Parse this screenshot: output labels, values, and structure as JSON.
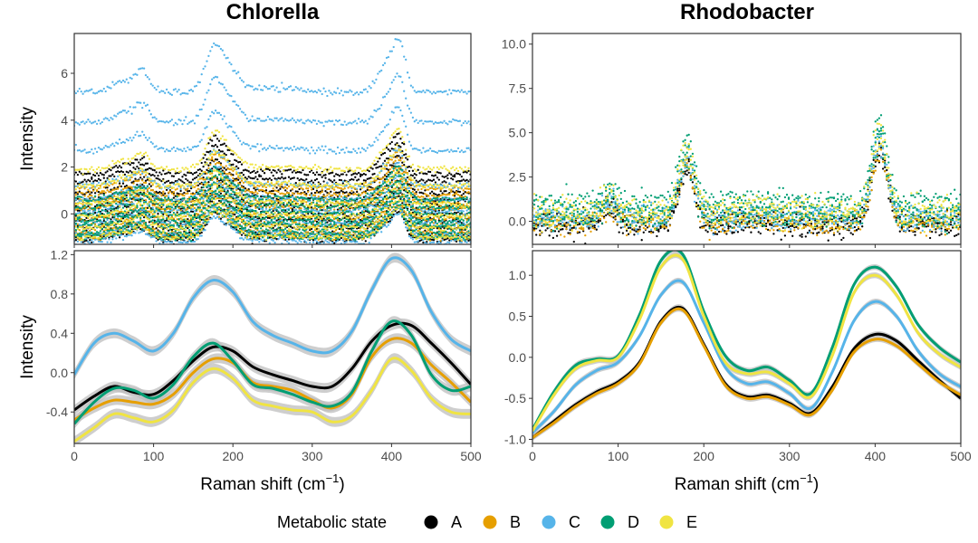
{
  "figure": {
    "legend": {
      "title": "Metabolic state"
    }
  },
  "colors": {
    "A": "#000000",
    "B": "#E69F00",
    "C": "#56B4E9",
    "D": "#009E73",
    "E": "#F0E442",
    "ribbon": "#bdbdbd"
  },
  "chart_data": [
    {
      "id": "chlorella-raw",
      "type": "scatter",
      "title": "Chlorella",
      "xlabel": "",
      "ylabel": "Intensity",
      "xlim": [
        0,
        500
      ],
      "ylim": [
        -1.3,
        7.7
      ],
      "xticks": [
        0,
        100,
        200,
        300,
        400,
        500
      ],
      "yticks": [
        0,
        2,
        4,
        6
      ],
      "show_x_tick_labels": false,
      "peaks": [
        {
          "x": 60,
          "h": 0.45,
          "w": 12
        },
        {
          "x": 85,
          "h": 0.85,
          "w": 9
        },
        {
          "x": 175,
          "h": 1.7,
          "w": 10
        },
        {
          "x": 195,
          "h": 1.0,
          "w": 12
        },
        {
          "x": 250,
          "h": 0.15,
          "w": 30
        },
        {
          "x": 395,
          "h": 1.1,
          "w": 12
        },
        {
          "x": 410,
          "h": 1.6,
          "w": 8
        }
      ],
      "series": [
        {
          "name": "A",
          "values": [
            1.7,
            1.4,
            0.9,
            0.6,
            0.3,
            0.0,
            -0.3,
            -0.6,
            -0.9,
            -1.1
          ]
        },
        {
          "name": "B",
          "values": [
            1.1,
            0.8,
            0.5,
            0.2,
            -0.2,
            -0.5,
            -0.8,
            -1.0
          ]
        },
        {
          "name": "C",
          "values": [
            5.2,
            3.9,
            2.7,
            1.2,
            0.6,
            0.1,
            -0.4,
            -0.9,
            -1.2
          ]
        },
        {
          "name": "D",
          "values": [
            0.6,
            0.3,
            0.0,
            -0.3,
            -0.5,
            -0.8,
            -1.0
          ]
        },
        {
          "name": "E",
          "values": [
            1.9,
            1.2,
            0.4,
            -0.1,
            -0.6,
            -1.0
          ]
        }
      ]
    },
    {
      "id": "rhodobacter-raw",
      "type": "scatter",
      "title": "Rhodobacter",
      "xlabel": "",
      "ylabel": "",
      "xlim": [
        0,
        500
      ],
      "ylim": [
        -1.3,
        10.6
      ],
      "xticks": [
        0,
        100,
        200,
        300,
        400,
        500
      ],
      "yticks": [
        0.0,
        2.5,
        5.0,
        7.5,
        10.0
      ],
      "ytick_labels": [
        "0.0",
        "2.5",
        "5.0",
        "7.5",
        "10.0"
      ],
      "show_x_tick_labels": false,
      "peaks": [
        {
          "x": 90,
          "h": 1.4,
          "w": 8
        },
        {
          "x": 180,
          "h": 5.2,
          "w": 9
        },
        {
          "x": 260,
          "h": 0.3,
          "w": 20
        },
        {
          "x": 405,
          "h": 6.8,
          "w": 9
        }
      ],
      "series": [
        {
          "name": "A",
          "values": [
            0.1,
            -0.2,
            -0.5
          ]
        },
        {
          "name": "B",
          "values": [
            0.0,
            -0.3
          ]
        },
        {
          "name": "C",
          "values": [
            0.5,
            0.2,
            -0.1
          ]
        },
        {
          "name": "D",
          "values": [
            1.2,
            0.8,
            0.4,
            0.0
          ]
        },
        {
          "name": "E",
          "values": [
            0.9,
            0.4,
            0.0
          ]
        }
      ]
    },
    {
      "id": "chlorella-smooth",
      "type": "line",
      "title": "",
      "xlabel": "Raman shift (cm",
      "xlabel_sup": "−1",
      "xlabel_tail": ")",
      "ylabel": "Intensity",
      "xlim": [
        0,
        500
      ],
      "ylim": [
        -0.72,
        1.24
      ],
      "xticks": [
        0,
        100,
        200,
        300,
        400,
        500
      ],
      "yticks": [
        -0.4,
        0.0,
        0.4,
        0.8,
        1.2
      ],
      "ytick_labels": [
        "-0.4",
        "0.0",
        "0.4",
        "0.8",
        "1.2"
      ],
      "x": [
        0,
        25,
        50,
        75,
        100,
        125,
        150,
        175,
        200,
        225,
        250,
        275,
        300,
        325,
        350,
        375,
        400,
        425,
        450,
        475,
        500
      ],
      "series": [
        {
          "name": "A",
          "values": [
            -0.38,
            -0.24,
            -0.14,
            -0.2,
            -0.22,
            -0.08,
            0.12,
            0.26,
            0.22,
            0.06,
            -0.02,
            -0.08,
            -0.14,
            -0.14,
            0.04,
            0.32,
            0.48,
            0.48,
            0.3,
            0.1,
            -0.12
          ]
        },
        {
          "name": "B",
          "values": [
            -0.48,
            -0.36,
            -0.28,
            -0.3,
            -0.32,
            -0.22,
            0.0,
            0.14,
            0.1,
            -0.1,
            -0.14,
            -0.18,
            -0.28,
            -0.36,
            -0.22,
            0.16,
            0.34,
            0.3,
            0.08,
            -0.1,
            -0.3
          ]
        },
        {
          "name": "C",
          "values": [
            -0.02,
            0.3,
            0.4,
            0.32,
            0.22,
            0.4,
            0.76,
            0.94,
            0.82,
            0.52,
            0.38,
            0.3,
            0.22,
            0.22,
            0.42,
            0.84,
            1.16,
            1.04,
            0.62,
            0.34,
            0.22
          ]
        },
        {
          "name": "D",
          "values": [
            -0.52,
            -0.3,
            -0.16,
            -0.18,
            -0.26,
            -0.12,
            0.16,
            0.3,
            0.12,
            -0.12,
            -0.16,
            -0.22,
            -0.3,
            -0.34,
            -0.2,
            0.22,
            0.52,
            0.38,
            -0.02,
            -0.18,
            -0.14
          ]
        },
        {
          "name": "E",
          "values": [
            -0.7,
            -0.56,
            -0.42,
            -0.46,
            -0.5,
            -0.38,
            -0.1,
            0.04,
            -0.06,
            -0.28,
            -0.34,
            -0.38,
            -0.4,
            -0.5,
            -0.44,
            -0.18,
            0.14,
            0.02,
            -0.26,
            -0.4,
            -0.42
          ]
        }
      ]
    },
    {
      "id": "rhodobacter-smooth",
      "type": "line",
      "title": "",
      "xlabel": "Raman shift (cm",
      "xlabel_sup": "−1",
      "xlabel_tail": ")",
      "ylabel": "",
      "xlim": [
        0,
        500
      ],
      "ylim": [
        -1.05,
        1.3
      ],
      "xticks": [
        0,
        100,
        200,
        300,
        400,
        500
      ],
      "yticks": [
        -1.0,
        -0.5,
        0.0,
        0.5,
        1.0
      ],
      "ytick_labels": [
        "-1.0",
        "-0.5",
        "0.0",
        "0.5",
        "1.0"
      ],
      "x": [
        0,
        25,
        50,
        75,
        100,
        125,
        150,
        175,
        200,
        225,
        250,
        275,
        300,
        325,
        350,
        375,
        400,
        425,
        450,
        475,
        500
      ],
      "series": [
        {
          "name": "A",
          "values": [
            -0.98,
            -0.78,
            -0.58,
            -0.42,
            -0.3,
            -0.06,
            0.44,
            0.6,
            0.16,
            -0.32,
            -0.48,
            -0.46,
            -0.56,
            -0.68,
            -0.36,
            0.1,
            0.28,
            0.2,
            -0.04,
            -0.28,
            -0.5
          ]
        },
        {
          "name": "B",
          "values": [
            -0.98,
            -0.8,
            -0.6,
            -0.44,
            -0.32,
            -0.08,
            0.42,
            0.58,
            0.14,
            -0.34,
            -0.5,
            -0.48,
            -0.58,
            -0.7,
            -0.4,
            0.06,
            0.22,
            0.14,
            -0.08,
            -0.3,
            -0.46
          ]
        },
        {
          "name": "C",
          "values": [
            -0.92,
            -0.66,
            -0.34,
            -0.16,
            -0.06,
            0.26,
            0.76,
            0.92,
            0.42,
            -0.12,
            -0.32,
            -0.3,
            -0.44,
            -0.62,
            -0.18,
            0.44,
            0.68,
            0.5,
            0.08,
            -0.2,
            -0.36
          ]
        },
        {
          "name": "D",
          "values": [
            -0.88,
            -0.42,
            -0.1,
            -0.02,
            0.02,
            0.52,
            1.18,
            1.26,
            0.56,
            0.02,
            -0.16,
            -0.12,
            -0.28,
            -0.44,
            0.12,
            0.88,
            1.1,
            0.86,
            0.4,
            0.12,
            -0.06
          ]
        },
        {
          "name": "E",
          "values": [
            -0.9,
            -0.46,
            -0.14,
            -0.04,
            0.0,
            0.46,
            1.1,
            1.2,
            0.5,
            -0.06,
            -0.2,
            -0.18,
            -0.32,
            -0.48,
            0.02,
            0.78,
            1.0,
            0.76,
            0.3,
            0.04,
            -0.12
          ]
        }
      ]
    }
  ]
}
